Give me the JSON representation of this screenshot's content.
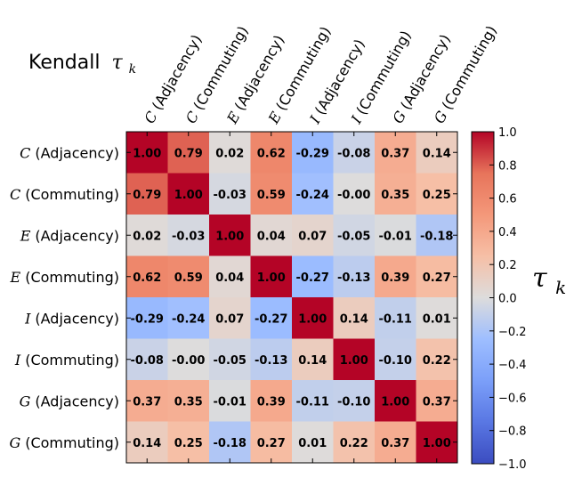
{
  "chart_data": {
    "type": "heatmap",
    "title_prefix": "Kendall",
    "title_symbol": "τ",
    "title_subscript": "k",
    "colorbar_label_symbol": "τ",
    "colorbar_label_subscript": "k",
    "colorbar_range": [
      -1.0,
      1.0
    ],
    "colorbar_ticks": [
      "1.0",
      "0.8",
      "0.6",
      "0.4",
      "0.2",
      "0.0",
      "−0.2",
      "−0.4",
      "−0.6",
      "−0.8",
      "−1.0"
    ],
    "labels": [
      {
        "var": "C",
        "kind": "(Adjacency)"
      },
      {
        "var": "C",
        "kind": "(Commuting)"
      },
      {
        "var": "E",
        "kind": "(Adjacency)"
      },
      {
        "var": "E",
        "kind": "(Commuting)"
      },
      {
        "var": "I",
        "kind": "(Adjacency)"
      },
      {
        "var": "I",
        "kind": "(Commuting)"
      },
      {
        "var": "G",
        "kind": "(Adjacency)"
      },
      {
        "var": "G",
        "kind": "(Commuting)"
      }
    ],
    "matrix": [
      [
        1.0,
        0.79,
        0.02,
        0.62,
        -0.29,
        -0.08,
        0.37,
        0.14
      ],
      [
        0.79,
        1.0,
        -0.03,
        0.59,
        -0.24,
        -0.0,
        0.35,
        0.25
      ],
      [
        0.02,
        -0.03,
        1.0,
        0.04,
        0.07,
        -0.05,
        -0.01,
        -0.18
      ],
      [
        0.62,
        0.59,
        0.04,
        1.0,
        -0.27,
        -0.13,
        0.39,
        0.27
      ],
      [
        -0.29,
        -0.24,
        0.07,
        -0.27,
        1.0,
        0.14,
        -0.11,
        0.01
      ],
      [
        -0.08,
        -0.0,
        -0.05,
        -0.13,
        0.14,
        1.0,
        -0.1,
        0.22
      ],
      [
        0.37,
        0.35,
        -0.01,
        0.39,
        -0.11,
        -0.1,
        1.0,
        0.37
      ],
      [
        0.14,
        0.25,
        -0.18,
        0.27,
        0.01,
        0.22,
        0.37,
        1.0
      ]
    ],
    "cell_labels": [
      [
        "1.00",
        "0.79",
        "0.02",
        "0.62",
        "-0.29",
        "-0.08",
        "0.37",
        "0.14"
      ],
      [
        "0.79",
        "1.00",
        "-0.03",
        "0.59",
        "-0.24",
        "-0.00",
        "0.35",
        "0.25"
      ],
      [
        "0.02",
        "-0.03",
        "1.00",
        "0.04",
        "0.07",
        "-0.05",
        "-0.01",
        "-0.18"
      ],
      [
        "0.62",
        "0.59",
        "0.04",
        "1.00",
        "-0.27",
        "-0.13",
        "0.39",
        "0.27"
      ],
      [
        "-0.29",
        "-0.24",
        "0.07",
        "-0.27",
        "1.00",
        "0.14",
        "-0.11",
        "0.01"
      ],
      [
        "-0.08",
        "-0.00",
        "-0.05",
        "-0.13",
        "0.14",
        "1.00",
        "-0.10",
        "0.22"
      ],
      [
        "0.37",
        "0.35",
        "-0.01",
        "0.39",
        "-0.11",
        "-0.10",
        "1.00",
        "0.37"
      ],
      [
        "0.14",
        "0.25",
        "-0.18",
        "0.27",
        "0.01",
        "0.22",
        "0.37",
        "1.00"
      ]
    ],
    "colormap": "coolwarm"
  }
}
